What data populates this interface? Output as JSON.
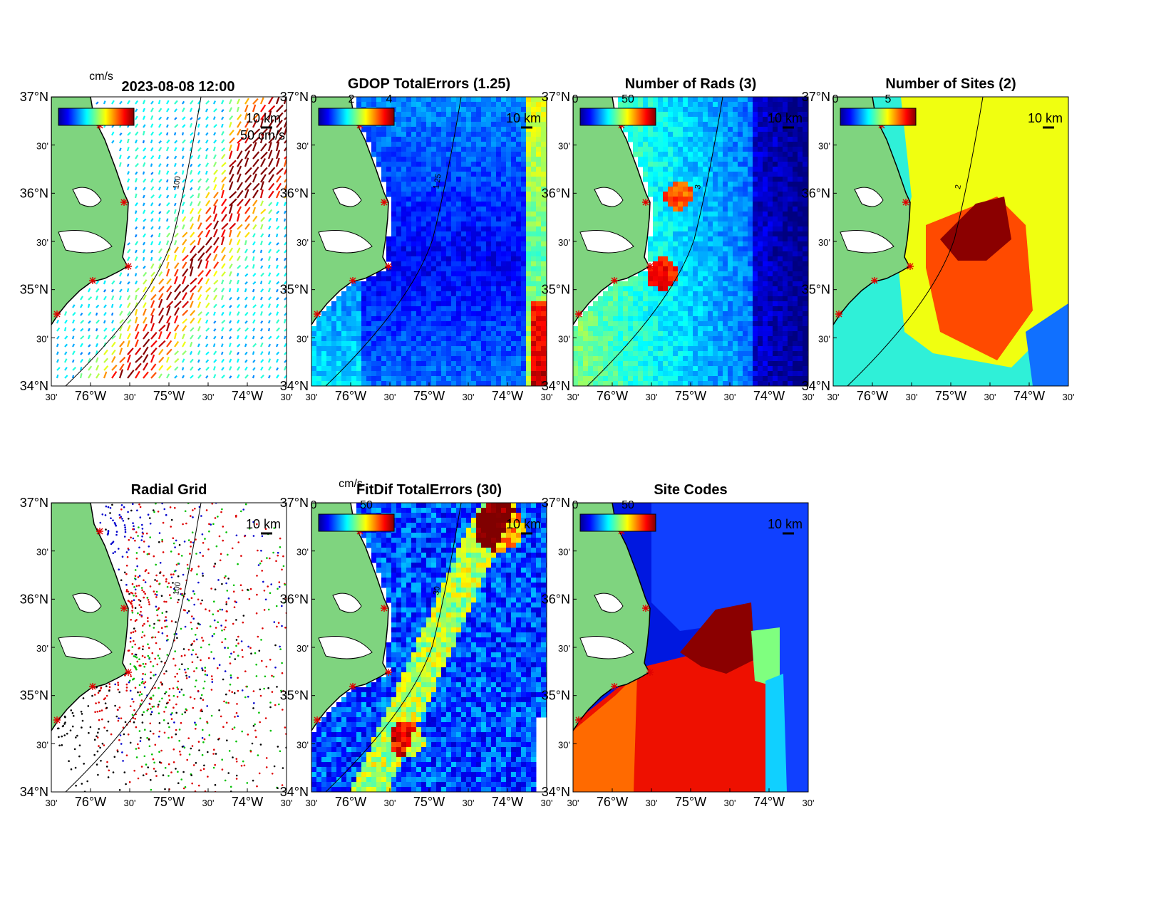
{
  "figure": {
    "timestamp": "2023-08-08 12:00",
    "top_left_unit": "cm/s",
    "scale_bar_label": "10 km"
  },
  "axes_ticks": {
    "lat_labels": [
      "37°N",
      "30'",
      "36°N",
      "30'",
      "35°N",
      "30'",
      "34°N"
    ],
    "lon_labels": [
      "30'",
      "76°W",
      "30'",
      "75°W",
      "30'",
      "74°W",
      "30'"
    ]
  },
  "panels": [
    {
      "id": "currents",
      "title": "",
      "colorbar_ticks": [],
      "colorbar_unit": "",
      "note": "50 cm/s",
      "contour_label": "100",
      "kind": "currents"
    },
    {
      "id": "gdop",
      "title": "GDOP TotalErrors (1.25)",
      "colorbar_ticks": [
        "0",
        "2",
        "4"
      ],
      "colorbar_unit": "",
      "note": "",
      "contour_label": "1.25",
      "kind": "gdop"
    },
    {
      "id": "rads",
      "title": "Number of Rads (3)",
      "colorbar_ticks": [
        "0",
        "50"
      ],
      "colorbar_unit": "",
      "note": "",
      "contour_label": "3",
      "kind": "rads"
    },
    {
      "id": "sites",
      "title": "Number of Sites (2)",
      "colorbar_ticks": [
        "0",
        "5"
      ],
      "colorbar_unit": "",
      "note": "",
      "contour_label": "2",
      "kind": "sites"
    },
    {
      "id": "radial-grid",
      "title": "Radial Grid",
      "colorbar_ticks": [],
      "colorbar_unit": "",
      "note": "",
      "contour_label": "100",
      "kind": "grid"
    },
    {
      "id": "fitdif",
      "title": "FitDif TotalErrors (30)",
      "colorbar_ticks": [
        "0",
        "50"
      ],
      "colorbar_unit": "cm/s",
      "note": "",
      "contour_label": "30",
      "kind": "fitdif"
    },
    {
      "id": "site-codes",
      "title": "Site Codes",
      "colorbar_ticks": [
        "0",
        "50"
      ],
      "colorbar_unit": "",
      "note": "",
      "contour_label": "",
      "kind": "codes"
    }
  ],
  "colors": {
    "land": "#7fd47f",
    "site_marker": "#e00000",
    "grid_site_colors": [
      "#0000cc",
      "#dd0000",
      "#00c000",
      "#000000"
    ]
  }
}
